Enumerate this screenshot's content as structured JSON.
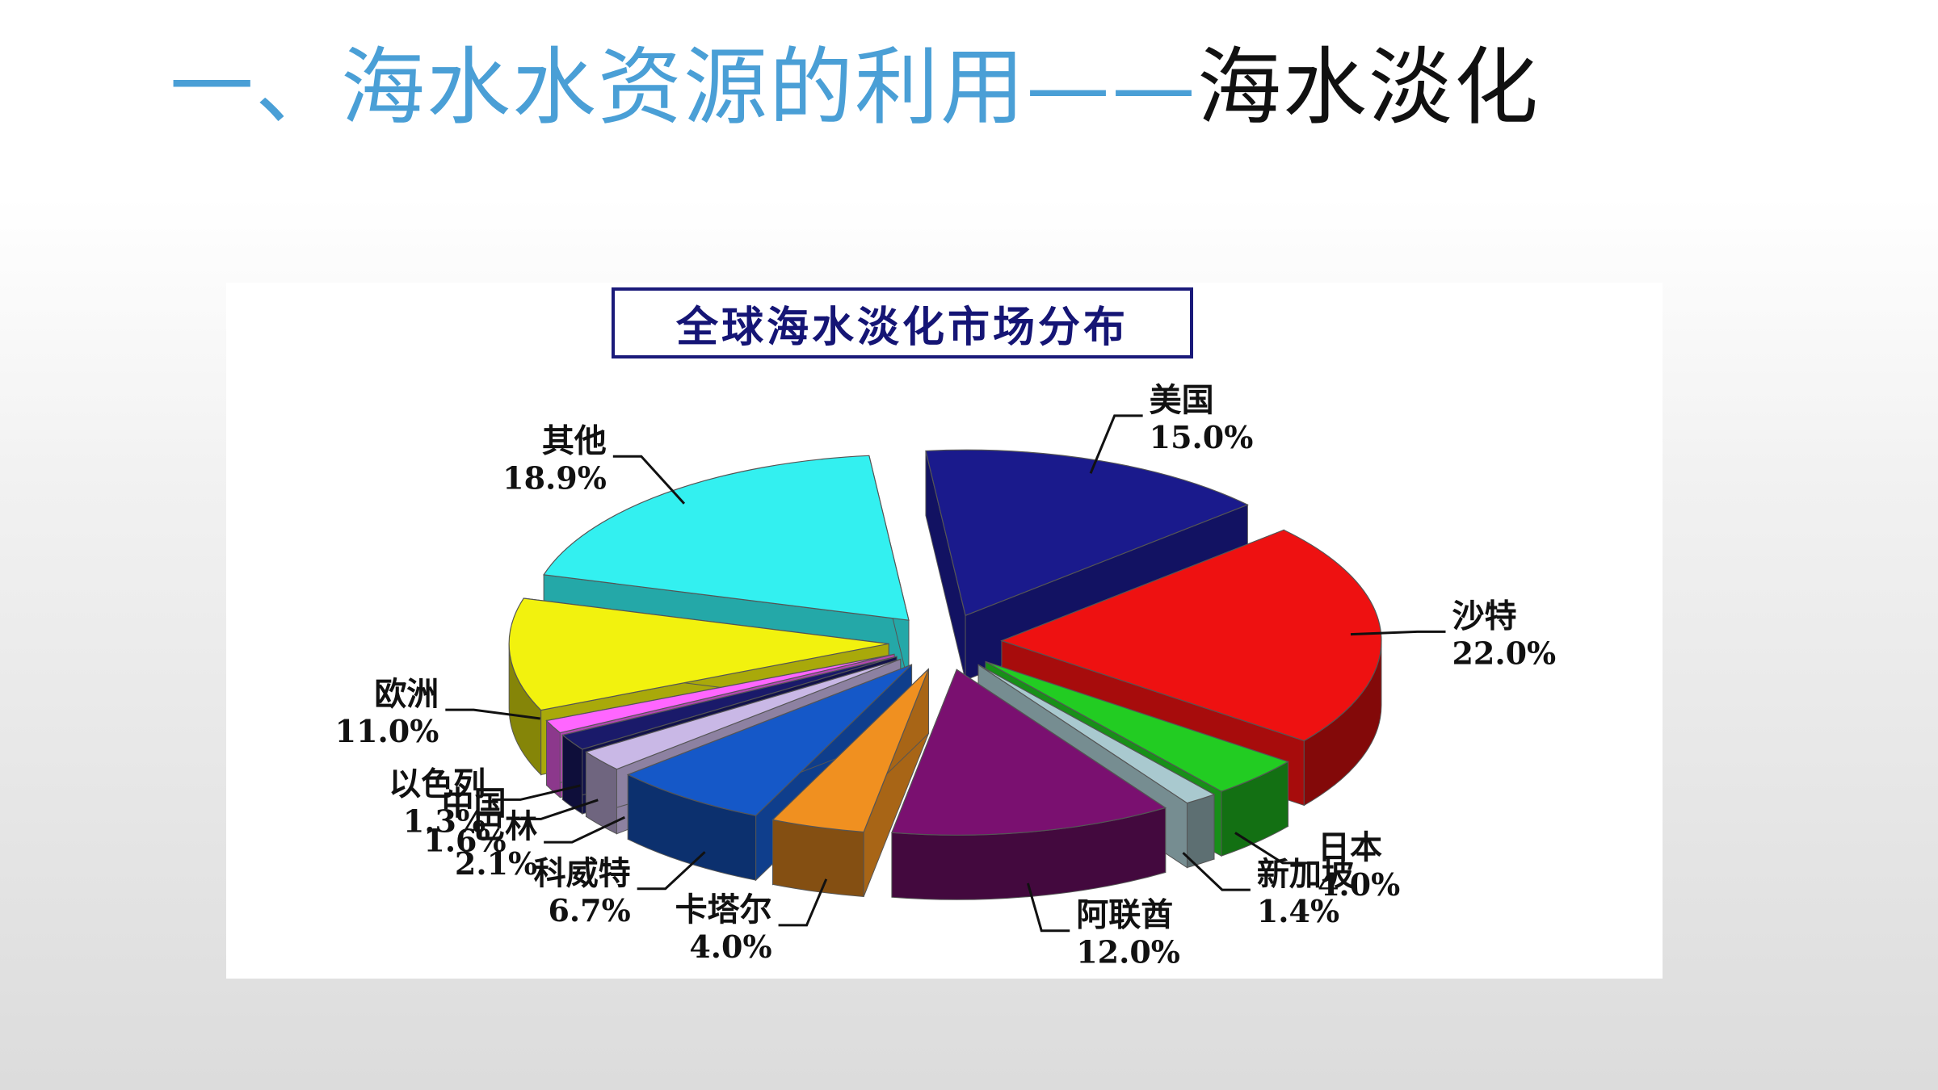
{
  "slide": {
    "title_main": "一、海水水资源的利用——",
    "title_sub": "海水淡化"
  },
  "colors": {
    "title_blue": "#4a9fd6",
    "chart_title_border": "#1a1a7a"
  },
  "chart_data": {
    "type": "pie",
    "title": "全球海水淡化市场分布",
    "style": "3d-exploded",
    "slices": [
      {
        "name": "美国",
        "value": 15.0,
        "label": "15.0%",
        "color": "#1a1a8c"
      },
      {
        "name": "沙特",
        "value": 22.0,
        "label": "22.0%",
        "color": "#ee1111"
      },
      {
        "name": "日本",
        "value": 4.0,
        "label": "4.0%",
        "color": "#22cc22"
      },
      {
        "name": "新加坡",
        "value": 1.4,
        "label": "1.4%",
        "color": "#a9c9cf"
      },
      {
        "name": "阿联酋",
        "value": 12.0,
        "label": "12.0%",
        "color": "#7a1070"
      },
      {
        "name": "卡塔尔",
        "value": 4.0,
        "label": "4.0%",
        "color": "#f09020"
      },
      {
        "name": "科威特",
        "value": 6.7,
        "label": "6.7%",
        "color": "#1558c8"
      },
      {
        "name": "巴林",
        "value": 2.1,
        "label": "2.1%",
        "color": "#c9b8e6"
      },
      {
        "name": "中国",
        "value": 1.6,
        "label": "1.6%",
        "color": "#1a1a6a"
      },
      {
        "name": "以色列",
        "value": 1.3,
        "label": "1.3%",
        "color": "#ff66ff"
      },
      {
        "name": "欧洲",
        "value": 11.0,
        "label": "11.0%",
        "color": "#f2f20e"
      },
      {
        "name": "其他",
        "value": 18.9,
        "label": "18.9%",
        "color": "#33f0f0"
      }
    ]
  }
}
